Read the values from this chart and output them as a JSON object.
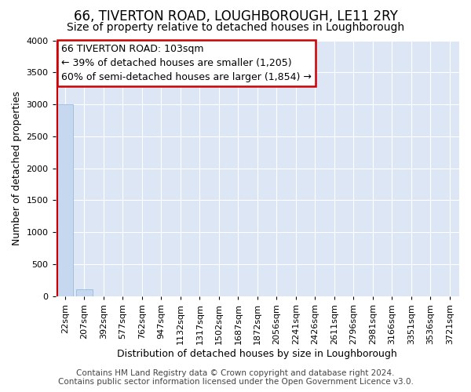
{
  "title": "66, TIVERTON ROAD, LOUGHBOROUGH, LE11 2RY",
  "subtitle": "Size of property relative to detached houses in Loughborough",
  "xlabel": "Distribution of detached houses by size in Loughborough",
  "ylabel": "Number of detached properties",
  "bar_labels": [
    "22sqm",
    "207sqm",
    "392sqm",
    "577sqm",
    "762sqm",
    "947sqm",
    "1132sqm",
    "1317sqm",
    "1502sqm",
    "1687sqm",
    "1872sqm",
    "2056sqm",
    "2241sqm",
    "2426sqm",
    "2611sqm",
    "2796sqm",
    "2981sqm",
    "3166sqm",
    "3351sqm",
    "3536sqm",
    "3721sqm"
  ],
  "bar_values": [
    3000,
    110,
    0,
    0,
    0,
    0,
    0,
    0,
    0,
    0,
    0,
    0,
    0,
    0,
    0,
    0,
    0,
    0,
    0,
    0,
    0
  ],
  "bar_color": "#c5d8f0",
  "bar_edge_color": "#8ab4d8",
  "ylim": [
    0,
    4000
  ],
  "yticks": [
    0,
    500,
    1000,
    1500,
    2000,
    2500,
    3000,
    3500,
    4000
  ],
  "annotation_box_title": "66 TIVERTON ROAD: 103sqm",
  "annotation_line1": "← 39% of detached houses are smaller (1,205)",
  "annotation_line2": "60% of semi-detached houses are larger (1,854) →",
  "annotation_box_color": "#cc0000",
  "subject_bar_index": 0,
  "footer_line1": "Contains HM Land Registry data © Crown copyright and database right 2024.",
  "footer_line2": "Contains public sector information licensed under the Open Government Licence v3.0.",
  "fig_bg_color": "#ffffff",
  "plot_bg_color": "#dce6f5",
  "grid_color": "#ffffff",
  "title_fontsize": 12,
  "subtitle_fontsize": 10,
  "axis_label_fontsize": 9,
  "tick_fontsize": 8,
  "footer_fontsize": 7.5,
  "annotation_fontsize": 9
}
